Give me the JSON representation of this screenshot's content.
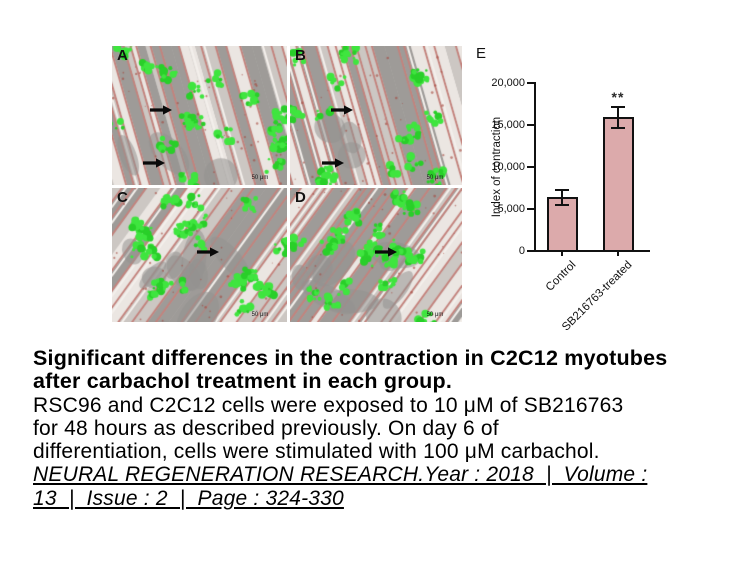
{
  "figure": {
    "chart_label": "E",
    "panels": [
      {
        "label": "A",
        "scale_bar": "50 μm",
        "arrows": 2
      },
      {
        "label": "B",
        "scale_bar": "50 μm",
        "arrows": 2
      },
      {
        "label": "C",
        "scale_bar": "50 μm",
        "arrows": 1
      },
      {
        "label": "D",
        "scale_bar": "50 μm",
        "arrows": 1
      }
    ]
  },
  "chart_data": {
    "type": "bar",
    "title": "",
    "xlabel": "",
    "ylabel": "Index of contraction",
    "categories": [
      "Control",
      "SB216763-treated"
    ],
    "values": [
      6400,
      15900
    ],
    "errors": [
      900,
      1300
    ],
    "ylim": [
      0,
      20000
    ],
    "ytick_labels": [
      "20,000",
      "15,000",
      "10,000",
      "5,000",
      "0"
    ],
    "grid": false,
    "legend_position": "none",
    "bar_fill_color": "#dcaaab",
    "axis_color": "#111111",
    "significance_label": "**",
    "significance_on": "SB216763-treated"
  },
  "caption": {
    "title_lines": [
      "Significant differences in the contraction in C2C12 myotubes",
      "after carbachol treatment in each group."
    ],
    "body_lines": [
      "RSC96 and C2C12 cells were exposed to 10 μM of SB216763",
      "for 48 hours as described previously. On day 6 of",
      "differentiation, cells were stimulated with 100 μM carbachol."
    ],
    "citation_lines": [
      "NEURAL REGENERATION RESEARCH.Year : 2018  |  Volume :",
      "13  |  Issue : 2  |  Page : 324-330"
    ]
  }
}
